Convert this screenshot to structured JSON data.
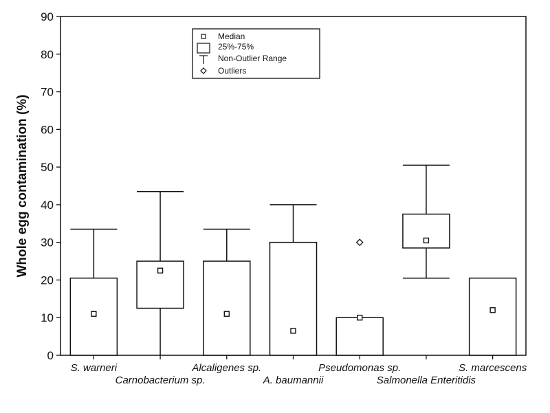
{
  "chart_data": {
    "type": "box",
    "xlabel": "",
    "ylabel": "Whole egg contamination (%)",
    "ylim": [
      0,
      90
    ],
    "yticks": [
      0,
      10,
      20,
      30,
      40,
      50,
      60,
      70,
      80,
      90
    ],
    "grid": false,
    "legend_position": "top-center",
    "legend": [
      "Median",
      "25%-75%",
      "Non-Outlier Range",
      "Outliers"
    ],
    "categories": [
      "S. warneri",
      "Carnobacterium sp.",
      "Alcaligenes sp.",
      "A. baumannii",
      "Pseudomonas sp.",
      "Salmonella Enteritidis",
      "S. marcescens"
    ],
    "series": [
      {
        "category": "S. warneri",
        "median": 11,
        "q1": 0,
        "q3": 20.5,
        "whisker_low": 0,
        "whisker_high": 33.5,
        "outliers": []
      },
      {
        "category": "Carnobacterium sp.",
        "median": 22.5,
        "q1": 12.5,
        "q3": 25,
        "whisker_low": 0,
        "whisker_high": 43.5,
        "outliers": []
      },
      {
        "category": "Alcaligenes sp.",
        "median": 11,
        "q1": 0,
        "q3": 25,
        "whisker_low": 0,
        "whisker_high": 33.5,
        "outliers": []
      },
      {
        "category": "A. baumannii",
        "median": 6.5,
        "q1": 0,
        "q3": 30,
        "whisker_low": 0,
        "whisker_high": 40,
        "outliers": []
      },
      {
        "category": "Pseudomonas sp.",
        "median": 10,
        "q1": 0,
        "q3": 10,
        "whisker_low": 0,
        "whisker_high": 10,
        "outliers": [
          30
        ]
      },
      {
        "category": "Salmonella Enteritidis",
        "median": 30.5,
        "q1": 28.5,
        "q3": 37.5,
        "whisker_low": 20.5,
        "whisker_high": 50.5,
        "outliers": []
      },
      {
        "category": "S. marcescens",
        "median": 12,
        "q1": 0,
        "q3": 20.5,
        "whisker_low": 0,
        "whisker_high": 20.5,
        "outliers": []
      }
    ]
  }
}
